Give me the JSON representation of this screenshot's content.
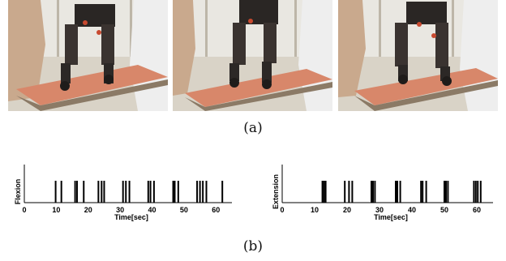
{
  "figure": {
    "caption_a": "(a)",
    "caption_b": "(b)"
  },
  "photos": [
    {
      "panel": "left"
    },
    {
      "panel": "middle"
    },
    {
      "panel": "right"
    }
  ],
  "chart_data": [
    {
      "type": "event-raster",
      "ylabel": "Flexion",
      "xlabel": "Time[sec]",
      "xlim": [
        0,
        65
      ],
      "xticks": [
        0,
        10,
        20,
        30,
        40,
        50,
        60
      ],
      "events": [
        9.8,
        11.6,
        15.9,
        16.5,
        18.6,
        23.2,
        24.2,
        25.0,
        30.9,
        31.8,
        32.9,
        38.8,
        39.5,
        40.6,
        46.6,
        47.1,
        48.2,
        54.1,
        55.0,
        55.9,
        57.0,
        62.0
      ]
    },
    {
      "type": "event-raster",
      "ylabel": "Extension",
      "xlabel": "Time[sec]",
      "xlim": [
        0,
        65
      ],
      "xticks": [
        0,
        10,
        20,
        30,
        40,
        50,
        60
      ],
      "events": [
        12.4,
        12.9,
        13.4,
        19.3,
        20.6,
        21.6,
        27.5,
        28.0,
        28.6,
        35.0,
        35.5,
        36.4,
        42.8,
        43.3,
        44.4,
        50.0,
        50.5,
        51.1,
        59.1,
        59.7,
        60.3,
        61.2
      ]
    }
  ]
}
